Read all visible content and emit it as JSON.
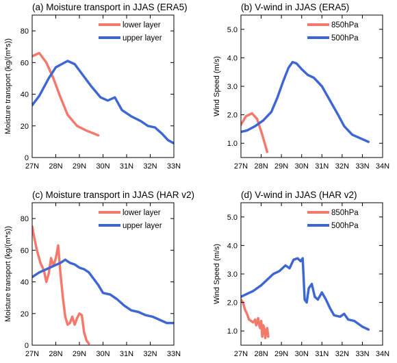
{
  "chart_data": [
    {
      "type": "line",
      "title": "(a) Moisture transport in JJAS (ERA5)",
      "xlabel": "",
      "ylabel": "Moisture transport (kg/(m*s))",
      "xlim": [
        27,
        33
      ],
      "ylim": [
        0,
        90
      ],
      "xticks": [
        27,
        28,
        29,
        30,
        31,
        32,
        33
      ],
      "xtick_labels": [
        "27N",
        "28N",
        "29N",
        "30N",
        "31N",
        "32N",
        "33N"
      ],
      "yticks": [
        0,
        20,
        40,
        60,
        80
      ],
      "ytick_labels": [
        "0",
        "20",
        "40",
        "60",
        "80"
      ],
      "legend": "top-right",
      "series": [
        {
          "name": "lower layer",
          "color": "#f4796a",
          "x": [
            27.0,
            27.3,
            27.6,
            27.9,
            28.2,
            28.5,
            28.9,
            29.3,
            29.8
          ],
          "y": [
            64,
            66,
            60,
            50,
            38,
            27,
            20,
            17,
            14
          ]
        },
        {
          "name": "upper layer",
          "color": "#3f67d3",
          "x": [
            27.0,
            27.3,
            27.7,
            28.0,
            28.25,
            28.5,
            28.8,
            29.1,
            29.5,
            29.9,
            30.2,
            30.5,
            30.8,
            31.2,
            31.6,
            31.9,
            32.2,
            32.5,
            32.75,
            33.0
          ],
          "y": [
            33,
            39,
            50,
            57,
            59,
            61,
            59,
            53,
            45,
            38,
            36,
            38,
            30,
            26,
            23,
            20,
            19,
            15,
            11,
            9
          ]
        }
      ]
    },
    {
      "type": "line",
      "title": "(b) V-wind  in JJAS (ERA5)",
      "xlabel": "",
      "ylabel": "Wind Speed (m/s)",
      "xlim": [
        27,
        34
      ],
      "ylim": [
        0.5,
        5.5
      ],
      "xticks": [
        27,
        28,
        29,
        30,
        31,
        32,
        33,
        34
      ],
      "xtick_labels": [
        "27N",
        "28N",
        "29N",
        "30N",
        "31N",
        "32N",
        "33N",
        "34N"
      ],
      "yticks": [
        1.0,
        2.0,
        3.0,
        4.0,
        5.0
      ],
      "ytick_labels": [
        "1.0",
        "2.0",
        "3.0",
        "4.0",
        "5.0"
      ],
      "legend": "top-right",
      "series": [
        {
          "name": "850hPa",
          "color": "#f4796a",
          "x": [
            27.0,
            27.25,
            27.55,
            27.8,
            28.05,
            28.3
          ],
          "y": [
            1.65,
            1.95,
            2.05,
            1.85,
            1.3,
            0.7
          ]
        },
        {
          "name": "500hPa",
          "color": "#3f67d3",
          "x": [
            27.0,
            27.3,
            27.7,
            28.1,
            28.5,
            28.8,
            29.1,
            29.35,
            29.55,
            29.75,
            30.0,
            30.3,
            30.6,
            31.0,
            31.4,
            31.8,
            32.1,
            32.5,
            33.3
          ],
          "y": [
            1.4,
            1.45,
            1.6,
            1.8,
            2.1,
            2.6,
            3.2,
            3.65,
            3.85,
            3.8,
            3.6,
            3.4,
            3.3,
            3.0,
            2.5,
            2.0,
            1.6,
            1.3,
            1.05
          ]
        }
      ]
    },
    {
      "type": "line",
      "title": "(c) Moisture transport in JJAS (HAR v2)",
      "xlabel": "",
      "ylabel": "Moisture transport (kg/(m*s))",
      "xlim": [
        27,
        33
      ],
      "ylim": [
        0,
        90
      ],
      "xticks": [
        27,
        28,
        29,
        30,
        31,
        32,
        33
      ],
      "xtick_labels": [
        "27N",
        "28N",
        "29N",
        "30N",
        "31N",
        "32N",
        "33N"
      ],
      "yticks": [
        0,
        20,
        40,
        60,
        80
      ],
      "ytick_labels": [
        "0",
        "20",
        "40",
        "60",
        "80"
      ],
      "legend": "top-right",
      "series": [
        {
          "name": "lower layer",
          "color": "#f4796a",
          "x": [
            27.0,
            27.1,
            27.2,
            27.35,
            27.5,
            27.6,
            27.7,
            27.8,
            27.9,
            28.0,
            28.1,
            28.2,
            28.3,
            28.4,
            28.5,
            28.6,
            28.7,
            28.8,
            28.9,
            29.0,
            29.1,
            29.2,
            29.3,
            29.4
          ],
          "y": [
            75,
            67,
            60,
            52,
            47,
            40,
            45,
            55,
            50,
            55,
            63,
            45,
            30,
            18,
            13,
            14,
            18,
            13,
            17,
            20,
            19,
            8,
            3,
            1
          ]
        },
        {
          "name": "upper layer",
          "color": "#3f67d3",
          "x": [
            27.0,
            27.3,
            27.6,
            27.9,
            28.2,
            28.4,
            28.6,
            28.8,
            29.0,
            29.2,
            29.4,
            29.6,
            29.8,
            30.0,
            30.3,
            30.6,
            30.9,
            31.2,
            31.5,
            31.8,
            32.1,
            32.4,
            32.7,
            33.0
          ],
          "y": [
            43,
            46,
            48,
            50,
            52,
            54,
            52,
            51,
            49,
            48,
            46,
            42,
            38,
            33,
            32,
            29,
            25,
            22,
            21,
            19,
            18,
            16,
            14,
            14
          ]
        }
      ]
    },
    {
      "type": "line",
      "title": "(d) V-wind  in JJAS (HAR v2)",
      "xlabel": "",
      "ylabel": "Wind Speed (m/s)",
      "xlim": [
        27,
        34
      ],
      "ylim": [
        0.5,
        5.5
      ],
      "xticks": [
        27,
        28,
        29,
        30,
        31,
        32,
        33,
        34
      ],
      "xtick_labels": [
        "27N",
        "28N",
        "29N",
        "30N",
        "31N",
        "32N",
        "33N",
        "34N"
      ],
      "yticks": [
        1.0,
        2.0,
        3.0,
        4.0,
        5.0
      ],
      "ytick_labels": [
        "1.0",
        "2.0",
        "3.0",
        "4.0",
        "5.0"
      ],
      "legend": "top-right",
      "series": [
        {
          "name": "850hPa",
          "color": "#f4796a",
          "x": [
            27.0,
            27.1,
            27.2,
            27.3,
            27.4,
            27.5,
            27.6,
            27.7,
            27.75,
            27.8,
            27.85,
            27.9,
            27.95,
            28.0,
            28.05,
            28.1,
            28.15,
            28.2,
            28.25,
            28.3,
            28.35
          ],
          "y": [
            2.1,
            2.0,
            1.75,
            1.6,
            1.4,
            1.35,
            1.3,
            1.4,
            1.2,
            1.3,
            1.45,
            1.2,
            1.1,
            1.35,
            0.8,
            1.2,
            1.1,
            0.75,
            1.0,
            1.1,
            0.8
          ]
        },
        {
          "name": "500hPa",
          "color": "#3f67d3",
          "x": [
            27.0,
            27.3,
            27.6,
            28.0,
            28.3,
            28.6,
            28.9,
            29.2,
            29.4,
            29.6,
            29.8,
            29.95,
            30.05,
            30.15,
            30.25,
            30.35,
            30.5,
            30.65,
            30.8,
            31.0,
            31.2,
            31.4,
            31.6,
            31.9,
            32.1,
            32.3,
            32.6,
            33.0,
            33.3
          ],
          "y": [
            2.2,
            2.3,
            2.4,
            2.6,
            2.8,
            3.0,
            3.1,
            3.3,
            3.2,
            3.5,
            3.55,
            3.45,
            3.55,
            2.1,
            2.0,
            2.5,
            2.65,
            2.2,
            2.1,
            2.35,
            2.1,
            1.8,
            1.55,
            1.5,
            1.6,
            1.4,
            1.35,
            1.15,
            1.05
          ]
        }
      ]
    }
  ]
}
